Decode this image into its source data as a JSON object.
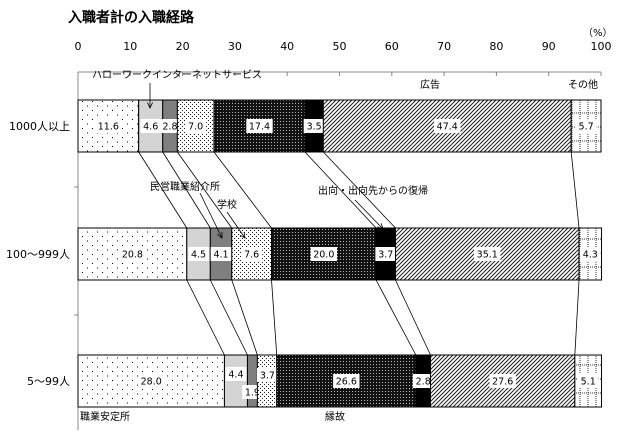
{
  "chart_data": {
    "type": "bar",
    "orientation": "horizontal",
    "stacked": true,
    "title": "入職者計の入職経路",
    "unit_label": "（%）",
    "xlim": [
      0,
      100
    ],
    "xticks": [
      0,
      10,
      20,
      30,
      40,
      50,
      60,
      70,
      80,
      90,
      100
    ],
    "categories": [
      "1000人以上",
      "100～999人",
      "5～99人"
    ],
    "series": [
      {
        "name": "職業安定所",
        "values": [
          11.6,
          20.8,
          28.0
        ],
        "pattern": "sparse-dots"
      },
      {
        "name": "ハローワークインターネットサービス",
        "values": [
          4.6,
          4.5,
          4.4
        ],
        "pattern": "light-gray",
        "color": "#d4d4d4"
      },
      {
        "name": "民営職業紹介所",
        "values": [
          2.8,
          4.1,
          1.9
        ],
        "pattern": "dark-gray",
        "color": "#7f7f7f"
      },
      {
        "name": "学校",
        "values": [
          7.0,
          7.6,
          3.7
        ],
        "pattern": "dense-dots"
      },
      {
        "name": "縁故",
        "values": [
          17.4,
          20.0,
          26.6
        ],
        "pattern": "black-checker"
      },
      {
        "name": "出向・出向先からの復帰",
        "values": [
          3.5,
          3.7,
          2.8
        ],
        "pattern": "solid-black",
        "color": "#000000"
      },
      {
        "name": "広告",
        "values": [
          47.4,
          35.1,
          27.6
        ],
        "pattern": "diagonal-hatch"
      },
      {
        "name": "その他",
        "values": [
          5.7,
          4.3,
          5.1
        ],
        "pattern": "dashed-grid"
      }
    ],
    "grid": false
  }
}
